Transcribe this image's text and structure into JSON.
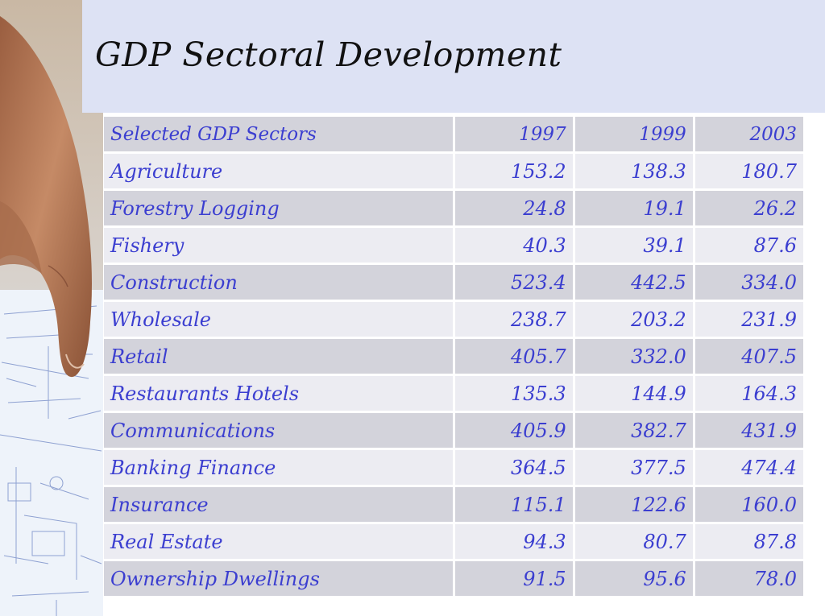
{
  "title": "GDP Sectoral Development",
  "colors": {
    "title_band": "#dde2f4",
    "text": "#3b3ed0",
    "row_dark": "#d3d3db",
    "row_light": "#ececf2"
  },
  "photo": {
    "icon": "hand-over-blueprint-photo"
  },
  "table": {
    "headers": [
      "Selected GDP Sectors",
      "1997",
      "1999",
      "2003"
    ],
    "rows": [
      {
        "sector": "Agriculture",
        "v1997": "153.2",
        "v1999": "138.3",
        "v2003": "180.7"
      },
      {
        "sector": "Forestry Logging",
        "v1997": "24.8",
        "v1999": "19.1",
        "v2003": "26.2"
      },
      {
        "sector": "Fishery",
        "v1997": "40.3",
        "v1999": "39.1",
        "v2003": "87.6"
      },
      {
        "sector": "Construction",
        "v1997": "523.4",
        "v1999": "442.5",
        "v2003": "334.0"
      },
      {
        "sector": "Wholesale",
        "v1997": "238.7",
        "v1999": "203.2",
        "v2003": "231.9"
      },
      {
        "sector": "Retail",
        "v1997": "405.7",
        "v1999": "332.0",
        "v2003": "407.5"
      },
      {
        "sector": "Restaurants Hotels",
        "v1997": "135.3",
        "v1999": "144.9",
        "v2003": "164.3"
      },
      {
        "sector": "Communications",
        "v1997": "405.9",
        "v1999": "382.7",
        "v2003": "431.9"
      },
      {
        "sector": "Banking Finance",
        "v1997": "364.5",
        "v1999": "377.5",
        "v2003": "474.4"
      },
      {
        "sector": "Insurance",
        "v1997": "115.1",
        "v1999": "122.6",
        "v2003": "160.0"
      },
      {
        "sector": "Real Estate",
        "v1997": "94.3",
        "v1999": "80.7",
        "v2003": "87.8"
      },
      {
        "sector": "Ownership Dwellings",
        "v1997": "91.5",
        "v1999": "95.6",
        "v2003": "78.0"
      }
    ]
  }
}
